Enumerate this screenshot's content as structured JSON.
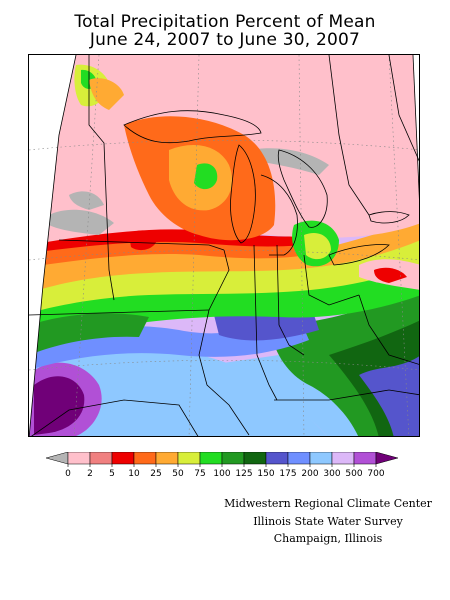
{
  "title": {
    "line1": "Total Precipitation Percent of Mean",
    "line2": "June 24, 2007 to June 30, 2007"
  },
  "legend": {
    "labels": [
      "0",
      "2",
      "5",
      "10",
      "25",
      "50",
      "75",
      "100",
      "125",
      "150",
      "175",
      "200",
      "300",
      "500",
      "700"
    ],
    "colors": [
      "#b4b4b4",
      "#ffc0cb",
      "#f08080",
      "#ee0000",
      "#ff6a1a",
      "#ffaa33",
      "#d8ee3a",
      "#22dd22",
      "#229922",
      "#116611",
      "#5555cc",
      "#6f8fff",
      "#8ec8ff",
      "#dcb8f8",
      "#b150d6",
      "#700078"
    ]
  },
  "credits": {
    "line1": "Midwestern Regional Climate Center",
    "line2": "Illinois State Water Survey",
    "line3": "Champaign, Illinois"
  }
}
